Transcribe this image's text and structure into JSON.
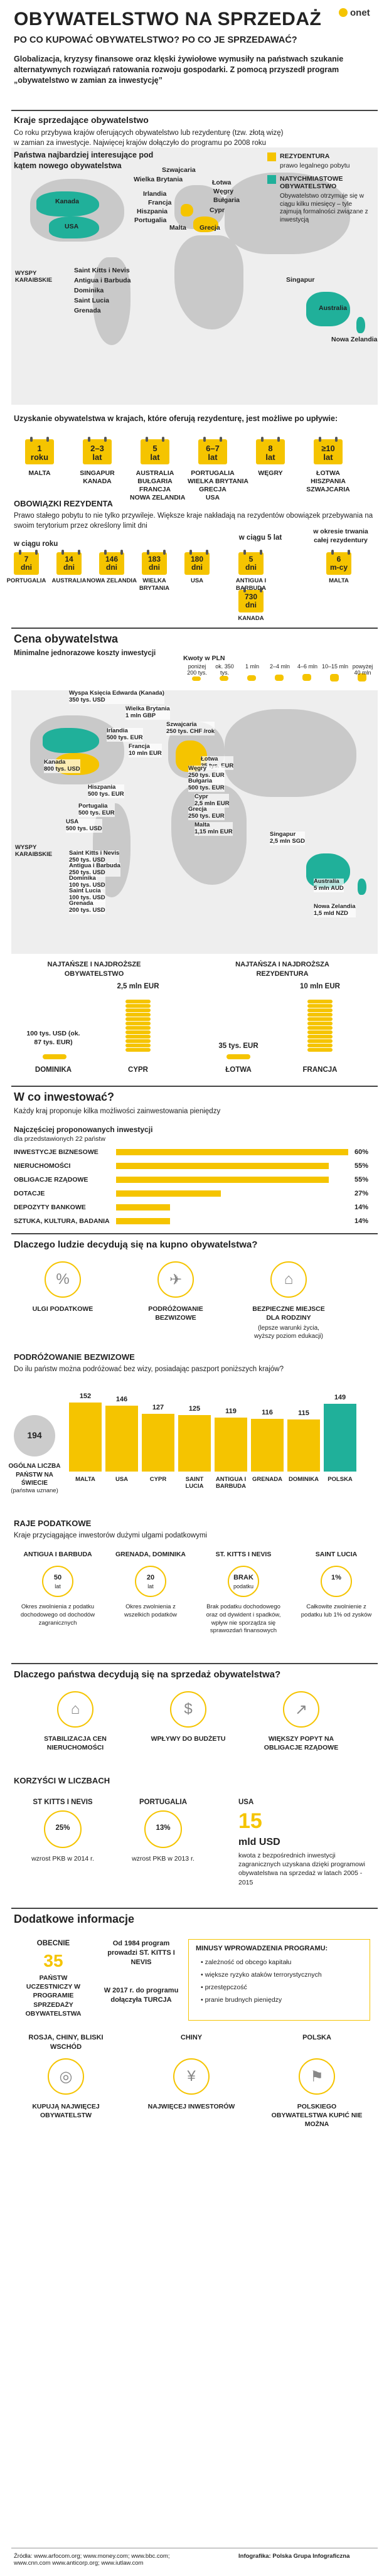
{
  "header": {
    "title": "OBYWATELSTWO NA SPRZEDAŻ",
    "subtitle": "PO CO KUPOWAĆ OBYWATELSTWO? PO CO JE SPRZEDAWAĆ?",
    "logo": "onet",
    "intro": "Globalizacja, kryzysy finansowe oraz klęski żywiołowe wymusiły na państwach szukanie alternatywnych rozwiązań ratowania rozwoju gospodarki. Z pomocą przyszedł program „obywatelstwo w zamian za inwestycję”"
  },
  "s1": {
    "title": "Kraje sprzedające obywatelstwo",
    "text": "Co roku przybywa krajów oferujących obywatelstwo lub rezydenturę (tzw. złotą wizę) w zamian za inwestycje. Najwięcej krajów dołączyło do programu po 2008 roku",
    "map_title": "Państwa najbardziej interesujące pod kątem nowego obywatelstwa",
    "legend1": "REZYDENTURA",
    "legend1_sub": "prawo legalnego pobytu",
    "legend2": "NATYCHMIASTOWE OBYWATELSTWO",
    "legend2_sub": "Obywatelstwo otrzymuje się w ciągu kilku miesięcy – tyle zajmują formalności związane z inwestycją",
    "labels": [
      "Kanada",
      "USA",
      "Wielka Brytania",
      "Szwajcaria",
      "Irlandia",
      "Francja",
      "Hiszpania",
      "Portugalia",
      "Łotwa",
      "Węgry",
      "Bułgaria",
      "Cypr",
      "Malta",
      "Grecja",
      "Singapur",
      "Australia",
      "Nowa Zelandia"
    ],
    "islands_title": "WYSPY KARAIBSKIE",
    "islands": [
      "Saint Kitts i Nevis",
      "Antigua i Barbuda",
      "Dominika",
      "Saint Lucia",
      "Grenada"
    ]
  },
  "s2": {
    "title": "Uzyskanie obywatelstwa w krajach, które oferują rezydenturę, jest możliwe po upływie:",
    "items": [
      {
        "v": "1",
        "u": "roku",
        "c": "MALTA"
      },
      {
        "v": "2–3",
        "u": "lat",
        "c": "SINGAPUR\nKANADA"
      },
      {
        "v": "5",
        "u": "lat",
        "c": "AUSTRALIA\nBUŁGARIA\nFRANCJA\nNOWA ZELANDIA"
      },
      {
        "v": "6–7",
        "u": "lat",
        "c": "PORTUGALIA\nWIELKA BRYTANIA\nGRECJA\nUSA"
      },
      {
        "v": "8",
        "u": "lat",
        "c": "WĘGRY"
      },
      {
        "v": "≥10",
        "u": "lat",
        "c": "ŁOTWA\nHISZPANIA\nSZWAJCARIA"
      }
    ]
  },
  "s3": {
    "title": "OBOWIĄZKI REZYDENTA",
    "text": "Prawo stałego pobytu to nie tylko przywileje. Większe kraje nakładają na rezydentów obowiązek przebywania na swoim terytorium przez określony limit dni",
    "h1": "w ciągu roku",
    "h2": "w ciągu 5 lat",
    "h3": "w okresie trwania całej rezydentury",
    "items": [
      {
        "v": "7",
        "u": "dni",
        "c": "PORTUGALIA"
      },
      {
        "v": "14",
        "u": "dni",
        "c": "AUSTRALIA"
      },
      {
        "v": "146",
        "u": "dni",
        "c": "NOWA ZELANDIA"
      },
      {
        "v": "183",
        "u": "dni",
        "c": "WIELKA BRYTANIA"
      },
      {
        "v": "180",
        "u": "dni",
        "c": "USA"
      },
      {
        "v": "5",
        "u": "dni",
        "c": "ANTIGUA I BARBUDA"
      },
      {
        "v": "730",
        "u": "dni",
        "c": "KANADA"
      },
      {
        "v": "6",
        "u": "m-cy",
        "c": "MALTA"
      }
    ]
  },
  "s4": {
    "title": "Cena obywatelstwa",
    "sub": "Minimalne jednorazowe koszty inwestycji",
    "legend_title": "Kwoty w PLN",
    "legend_items": [
      "poniżej 200 tys.",
      "ok. 350 tys.",
      "1 mln",
      "2–4 mln",
      "4–6 mln",
      "10–15 mln",
      "powyżej 40 mln"
    ],
    "prices": [
      {
        "c": "Wyspa Księcia Edwarda (Kanada)",
        "p": "350 tys. USD"
      },
      {
        "c": "Wielka Brytania",
        "p": "1 mln GBP"
      },
      {
        "c": "Irlandia",
        "p": "500 tys. EUR"
      },
      {
        "c": "Szwajcaria",
        "p": "250 tys. CHF /rok"
      },
      {
        "c": "Francja",
        "p": "10 mln EUR"
      },
      {
        "c": "Łotwa",
        "p": "35 tys. EUR"
      },
      {
        "c": "Kanada",
        "p": "800 tys. USD"
      },
      {
        "c": "Węgry",
        "p": "250 tys. EUR"
      },
      {
        "c": "Bułgaria",
        "p": "500 tys. EUR"
      },
      {
        "c": "Hiszpania",
        "p": "500 tys. EUR"
      },
      {
        "c": "Cypr",
        "p": "2,5 mln EUR"
      },
      {
        "c": "Portugalia",
        "p": "500 tys. EUR"
      },
      {
        "c": "Grecja",
        "p": "250 tys. EUR"
      },
      {
        "c": "USA",
        "p": "500 tys. USD"
      },
      {
        "c": "Malta",
        "p": "1,15 mln EUR"
      },
      {
        "c": "Singapur",
        "p": "2,5 mln SGD"
      },
      {
        "c": "Saint Kitts i Nevis",
        "p": "250 tys. USD"
      },
      {
        "c": "Antigua i Barbuda",
        "p": "250 tys. USD"
      },
      {
        "c": "Dominika",
        "p": "100 tys. USD"
      },
      {
        "c": "Saint Lucia",
        "p": "100 tys. USD"
      },
      {
        "c": "Grenada",
        "p": "200 tys. USD"
      },
      {
        "c": "Australia",
        "p": "5 mln AUD"
      },
      {
        "c": "Nowa Zelandia",
        "p": "1,5 mld NZD"
      }
    ],
    "islands_title": "WYSPY KARAIBSKIE",
    "cmp1_title": "NAJTAŃSZE I NAJDROŻSZE OBYWATELSTWO",
    "cmp1_low": "100 tys. USD (ok. 87 tys. EUR)",
    "cmp1_low_c": "DOMINIKA",
    "cmp1_high": "2,5 mln EUR",
    "cmp1_high_c": "CYPR",
    "cmp2_title": "NAJTAŃSZA I NAJDROŻSZA REZYDENTURA",
    "cmp2_low": "35 tys. EUR",
    "cmp2_low_c": "ŁOTWA",
    "cmp2_high": "10 mln EUR",
    "cmp2_high_c": "FRANCJA"
  },
  "s5": {
    "title": "W co inwestować?",
    "text": "Każdy kraj proponuje kilka możliwości zainwestowania pieniędzy",
    "chart_title": "Najczęściej proponowanych inwestycji",
    "chart_sub": "dla przedstawionych 22 państw",
    "chart_data": {
      "type": "bar",
      "categories": [
        "INWESTYCJE BIZNESOWE",
        "NIERUCHOMOŚCI",
        "OBLIGACJE RZĄDOWE",
        "DOTACJE",
        "DEPOZYTY BANKOWE",
        "SZTUKA, KULTURA, BADANIA"
      ],
      "values": [
        60,
        55,
        55,
        27,
        14,
        14
      ],
      "unit": "%"
    }
  },
  "s6": {
    "title": "Dlaczego ludzie decydują się na kupno obywatelstwa?",
    "items": [
      "ULGI PODATKOWE",
      "PODRÓŻOWANIE BEZWIZOWE",
      "BEZPIECZNE MIEJSCE DLA RODZINY",
      "(lepsze warunki życia, wyższy poziom edukacji)"
    ]
  },
  "s7": {
    "title": "PODRÓŻOWANIE BEZWIZOWE",
    "text": "Do ilu państw można podróżować bez wizy, posiadając paszport poniższych krajów?",
    "total": "194",
    "total_lbl": "OGÓLNA LICZBA PAŃSTW NA ŚWIECIE",
    "total_sub": "(państwa uznane)",
    "chart_data": {
      "type": "bar",
      "categories": [
        "MALTA",
        "USA",
        "CYPR",
        "SAINT LUCIA",
        "ANTIGUA I BARBUDA",
        "GRENADA",
        "DOMINIKA",
        "POLSKA"
      ],
      "values": [
        152,
        146,
        127,
        125,
        119,
        116,
        115,
        149
      ]
    }
  },
  "s8": {
    "title": "RAJE PODATKOWE",
    "text": "Kraje przyciągające inwestorów dużymi ulgami podatkowymi",
    "items": [
      {
        "c": "ANTIGUA I BARBUDA",
        "v": "50",
        "u": "lat",
        "d": "Okres zwolnienia z podatku dochodowego od dochodów zagranicznych"
      },
      {
        "c": "GRENADA, DOMINIKA",
        "v": "20",
        "u": "lat",
        "d": "Okres zwolnienia z wszelkich podatków"
      },
      {
        "c": "ST. KITTS I NEVIS",
        "v": "BRAK",
        "u": "podatku",
        "d": "Brak podatku dochodowego oraz od dywident i spadków, wpływ nie sporządza się sprawozdań finansowych"
      },
      {
        "c": "SAINT LUCIA",
        "v": "1%",
        "u": "",
        "d": "Całkowite zwolnienie z podatku lub 1% od zysków"
      }
    ]
  },
  "s9": {
    "title": "Dlaczego państwa decydują się na sprzedaż obywatelstwa?",
    "items": [
      "STABILIZACJA CEN NIERUCHOMOŚCI",
      "WPŁYWY DO BUDŻETU",
      "WIĘKSZY POPYT NA OBLIGACJE RZĄDOWE"
    ]
  },
  "s10": {
    "title": "KORZYŚCI W LICZBACH",
    "items": [
      {
        "c": "ST KITTS I NEVIS",
        "v": "25%",
        "d": "wzrost PKB w 2014 r."
      },
      {
        "c": "PORTUGALIA",
        "v": "13%",
        "d": "wzrost PKB w 2013 r."
      }
    ],
    "usa_c": "USA",
    "usa_v": "15",
    "usa_u": "mld USD",
    "usa_d": "kwota z bezpośrednich inwestycji zagranicznych uzyskana dzięki programowi obywatelstwa na sprzedaż w latach 2005 - 2015"
  },
  "s11": {
    "title": "Dodatkowe informacje",
    "b1": "OBECNIE",
    "b1_v": "35",
    "b1_d": "PAŃSTW UCZESTNICZY W PROGRAMIE SPRZEDAŻY OBYWATELSTWA",
    "b2": "Od 1984 program prowadzi ST. KITTS I NEVIS",
    "b2b": "W 2017 r. do programu dołączyła TURCJA",
    "risk_title": "MINUSY WPROWADZENIA PROGRAMU:",
    "risks": [
      "zależność od obcego kapitału",
      "większe ryzyko ataków terrorystycznych",
      "przestępczość",
      "pranie brudnych pieniędzy"
    ],
    "buyers": [
      {
        "c": "ROSJA, CHINY, BLISKI WSCHÓD",
        "d": "KUPUJĄ NAJWIĘCEJ OBYWATELSTW"
      },
      {
        "c": "CHINY",
        "d": "NAJWIĘCEJ INWESTORÓW"
      },
      {
        "c": "POLSKA",
        "d": "POLSKIEGO OBYWATELSTWA KUPIĆ NIE MOŻNA"
      }
    ]
  },
  "footer": {
    "sources": "Źródła: www.arfocom.org; www.money.com; www.bbc.com; www.cnn.com  www.anticorp.org; www.iutlaw.com",
    "infographic": "Infografika: Polska Grupa Infograficzna"
  }
}
